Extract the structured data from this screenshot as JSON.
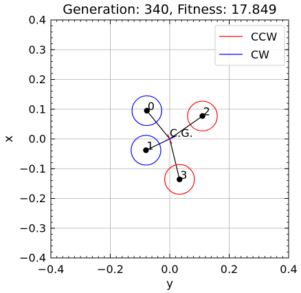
{
  "chart_data": {
    "type": "scatter",
    "title": "Generation: 340, Fitness: 17.849",
    "xlabel": "y",
    "ylabel": "x",
    "xlim": [
      -0.4,
      0.4
    ],
    "ylim": [
      -0.4,
      0.4
    ],
    "xticks": [
      -0.4,
      -0.2,
      0.0,
      0.2,
      0.4
    ],
    "yticks": [
      -0.4,
      -0.3,
      -0.2,
      -0.1,
      0.0,
      0.1,
      0.2,
      0.3,
      0.4
    ],
    "xtick_labels": [
      "−0.4",
      "−0.2",
      "0.0",
      "0.2",
      "0.4"
    ],
    "ytick_labels": [
      "−0.4",
      "−0.3",
      "−0.2",
      "−0.1",
      "0.0",
      "0.1",
      "0.2",
      "0.3",
      "0.4"
    ],
    "grid": true,
    "legend": {
      "placement": "top-right",
      "entries": [
        {
          "label": "CCW",
          "color": "#ff0000"
        },
        {
          "label": "CW",
          "color": "#0000ff"
        }
      ]
    },
    "cg": {
      "label": "C.G.",
      "y": 0.0,
      "x": 0.0
    },
    "rotor_radius": 0.05,
    "rotors": [
      {
        "label": "0",
        "y": -0.077,
        "x": 0.095,
        "direction": "CW",
        "color": "#0000ff"
      },
      {
        "label": "1",
        "y": -0.08,
        "x": -0.038,
        "direction": "CW",
        "color": "#0000ff"
      },
      {
        "label": "2",
        "y": 0.11,
        "x": 0.077,
        "direction": "CCW",
        "color": "#ff0000"
      },
      {
        "label": "3",
        "y": 0.033,
        "x": -0.136,
        "direction": "CCW",
        "color": "#ff0000"
      }
    ]
  }
}
